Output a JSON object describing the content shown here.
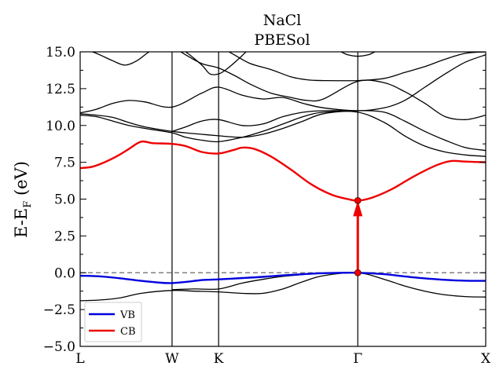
{
  "chart_data": {
    "type": "line",
    "title_lines": [
      "NaCl",
      "PBESol"
    ],
    "ylabel": "E-E",
    "ylabel_sub": "F",
    "ylabel_unit": " (eV)",
    "ylim": [
      -5.0,
      15.0
    ],
    "yticks": [
      "−5.0",
      "−2.5",
      "0.0",
      "2.5",
      "5.0",
      "7.5",
      "10.0",
      "12.5",
      "15.0"
    ],
    "ytick_values": [
      -5,
      -2.5,
      0,
      2.5,
      5,
      7.5,
      10,
      12.5,
      15
    ],
    "xlim": [
      0,
      1
    ],
    "high_symmetry_points": [
      {
        "label": "L",
        "x": 0.0
      },
      {
        "label": "W",
        "x": 0.2266
      },
      {
        "label": "K",
        "x": 0.3414
      },
      {
        "label": "Γ",
        "x": 0.6846
      },
      {
        "label": "X",
        "x": 1.0
      }
    ],
    "fermi_level": 0.0,
    "legend": [
      {
        "label": "VB",
        "color": "#0000dd"
      },
      {
        "label": "CB",
        "color": "#ee0000"
      }
    ],
    "band_gap_arrow": {
      "x": 0.6846,
      "from": 0.0,
      "to": 4.9,
      "color": "#ee0000"
    },
    "series": [
      {
        "name": "VB",
        "color": "#0000dd",
        "x": [
          0,
          0.05,
          0.1,
          0.15,
          0.2,
          0.2266,
          0.26,
          0.3,
          0.3414,
          0.4,
          0.45,
          0.5,
          0.55,
          0.6,
          0.6846,
          0.75,
          0.8,
          0.85,
          0.9,
          0.95,
          1.0
        ],
        "y": [
          -0.2,
          -0.25,
          -0.38,
          -0.55,
          -0.68,
          -0.7,
          -0.62,
          -0.5,
          -0.45,
          -0.36,
          -0.28,
          -0.18,
          -0.1,
          -0.03,
          0.0,
          -0.1,
          -0.25,
          -0.38,
          -0.48,
          -0.54,
          -0.55
        ]
      },
      {
        "name": "CB",
        "color": "#ee0000",
        "x": [
          0,
          0.03,
          0.06,
          0.09,
          0.12,
          0.15,
          0.18,
          0.2266,
          0.26,
          0.3,
          0.3414,
          0.38,
          0.4,
          0.43,
          0.47,
          0.52,
          0.57,
          0.62,
          0.66,
          0.6846,
          0.72,
          0.77,
          0.82,
          0.87,
          0.9,
          0.92,
          0.95,
          1.0
        ],
        "y": [
          7.1,
          7.2,
          7.5,
          7.9,
          8.4,
          8.9,
          8.8,
          8.75,
          8.6,
          8.2,
          8.1,
          8.35,
          8.5,
          8.4,
          7.9,
          7.0,
          6.0,
          5.3,
          5.0,
          4.9,
          5.1,
          5.7,
          6.5,
          7.2,
          7.5,
          7.6,
          7.55,
          7.5
        ]
      },
      {
        "color": "#000000",
        "x": [
          0,
          0.05,
          0.1,
          0.15,
          0.2266,
          0.28,
          0.3414,
          0.4,
          0.45,
          0.5,
          0.55,
          0.6,
          0.6846,
          0.75,
          0.8,
          0.85,
          0.9,
          0.95,
          1.0
        ],
        "y": [
          -1.9,
          -1.85,
          -1.7,
          -1.4,
          -1.2,
          -1.25,
          -1.3,
          -1.4,
          -1.4,
          -1.1,
          -0.6,
          -0.2,
          0.0,
          -0.45,
          -0.9,
          -1.25,
          -1.5,
          -1.62,
          -1.65
        ]
      },
      {
        "color": "#000000",
        "x": [
          0.2266,
          0.28,
          0.3414,
          0.4,
          0.45,
          0.5,
          0.55,
          0.6,
          0.6846
        ],
        "y": [
          -1.15,
          -1.1,
          -1.1,
          -0.7,
          -0.45,
          -0.25,
          -0.12,
          -0.04,
          0.0
        ]
      },
      {
        "color": "#000000",
        "x": [
          0,
          0.04,
          0.08,
          0.12,
          0.16,
          0.2266,
          0.26,
          0.3,
          0.3414,
          0.4,
          0.45,
          0.5,
          0.55,
          0.6,
          0.6846,
          0.75,
          0.8,
          0.85,
          0.9,
          0.95,
          1.0
        ],
        "y": [
          10.7,
          10.6,
          10.3,
          10.0,
          9.8,
          9.5,
          9.2,
          9.0,
          8.9,
          9.2,
          9.6,
          10.1,
          10.6,
          10.9,
          10.9,
          10.2,
          9.3,
          8.6,
          8.2,
          8.0,
          7.9
        ]
      },
      {
        "color": "#000000",
        "x": [
          0,
          0.04,
          0.08,
          0.12,
          0.16,
          0.2266,
          0.26,
          0.3,
          0.3414,
          0.4,
          0.45,
          0.5,
          0.55,
          0.6,
          0.6846,
          0.75,
          0.8,
          0.85,
          0.9,
          0.95,
          1.0
        ],
        "y": [
          10.8,
          10.7,
          10.55,
          10.2,
          9.9,
          9.6,
          9.5,
          9.4,
          9.3,
          9.2,
          9.4,
          9.8,
          10.3,
          10.8,
          11.0,
          10.9,
          10.3,
          9.6,
          9.0,
          8.5,
          8.3
        ]
      },
      {
        "color": "#000000",
        "x": [
          0,
          0.04,
          0.08,
          0.12,
          0.16,
          0.2266,
          0.3,
          0.3414,
          0.4,
          0.45,
          0.5,
          0.55,
          0.6,
          0.6846,
          0.75,
          0.8,
          0.85,
          0.9,
          0.95,
          1.0
        ],
        "y": [
          10.85,
          11.1,
          11.5,
          11.7,
          11.6,
          11.25,
          12.2,
          12.6,
          12.05,
          11.8,
          11.9,
          11.5,
          11.2,
          11.0,
          11.2,
          11.7,
          12.6,
          13.5,
          14.3,
          14.8
        ]
      },
      {
        "color": "#000000",
        "x": [
          0.2266,
          0.26,
          0.3,
          0.3414,
          0.4,
          0.45,
          0.5,
          0.55,
          0.6,
          0.6846
        ],
        "y": [
          9.6,
          9.9,
          10.3,
          10.4,
          10.0,
          10.1,
          10.6,
          10.9,
          11.0,
          11.0
        ]
      },
      {
        "color": "#000000",
        "x": [
          0,
          0.04,
          0.08,
          0.11,
          0.14,
          0.17,
          0.2,
          0.2266
        ],
        "y": [
          15.3,
          14.9,
          14.4,
          14.1,
          14.4,
          15.0,
          15.4,
          15.5
        ]
      },
      {
        "color": "#000000",
        "x": [
          0.2266,
          0.26,
          0.3,
          0.32,
          0.3414,
          0.36,
          0.39,
          0.42
        ],
        "y": [
          15.5,
          15.0,
          14.1,
          13.5,
          13.5,
          13.8,
          14.5,
          15.3
        ]
      },
      {
        "color": "#000000",
        "x": [
          0.2266,
          0.26,
          0.3,
          0.3414,
          0.38,
          0.42,
          0.47,
          0.52,
          0.56,
          0.6,
          0.6846,
          0.75,
          0.8,
          0.85,
          0.9,
          0.95,
          1.0
        ],
        "y": [
          15.4,
          14.8,
          14.2,
          13.9,
          13.4,
          12.8,
          12.2,
          11.9,
          11.7,
          11.8,
          13.0,
          12.9,
          12.3,
          11.5,
          10.6,
          10.4,
          10.7
        ]
      },
      {
        "color": "#000000",
        "x": [
          0.3414,
          0.38,
          0.42,
          0.47,
          0.52,
          0.56,
          0.6,
          0.6846,
          0.75,
          0.8,
          0.85,
          0.9,
          0.95,
          1.0
        ],
        "y": [
          15.4,
          14.8,
          14.2,
          13.8,
          13.3,
          13.1,
          13.05,
          13.05,
          13.2,
          13.6,
          14.0,
          14.5,
          14.9,
          15.0
        ]
      },
      {
        "color": "#000000",
        "x": [
          0.64,
          0.66,
          0.6846,
          0.71,
          0.73
        ],
        "y": [
          15.05,
          14.8,
          14.7,
          14.8,
          15.05
        ]
      }
    ]
  }
}
